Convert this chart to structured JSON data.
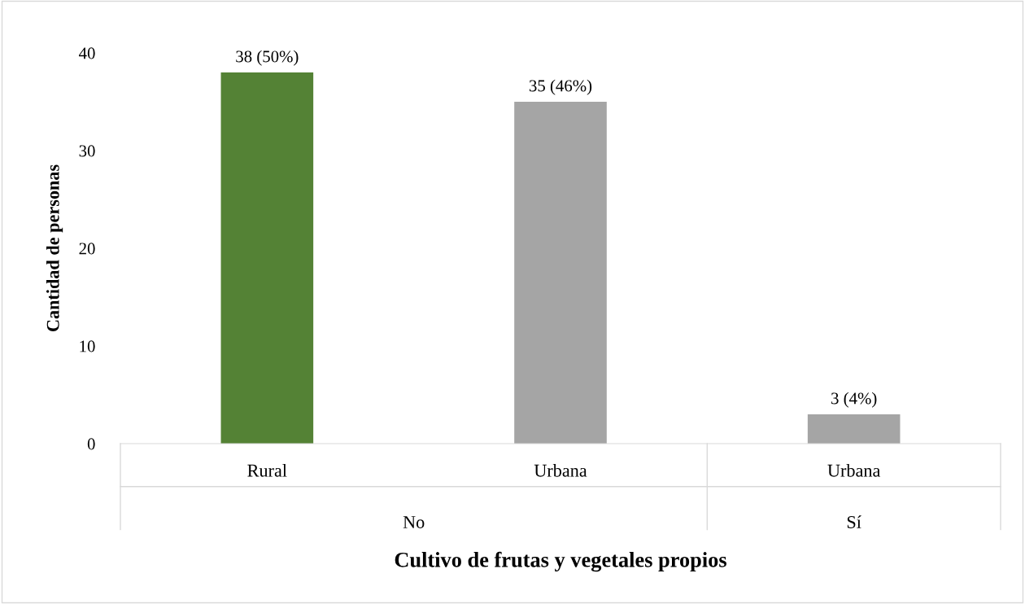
{
  "chart_data": {
    "type": "bar",
    "xlabel": "Cultivo de frutas y vegetales propios",
    "ylabel": "Cantidad de personas",
    "categories": [
      "Rural",
      "Urbana",
      "Urbana"
    ],
    "values": [
      38,
      35,
      3
    ],
    "colors": [
      "#548235",
      "#a5a5a5",
      "#a5a5a5"
    ],
    "value_labels": [
      "38 (50%)",
      "35 (46%)",
      "3 (4%)"
    ],
    "annotations": [
      "No",
      "Sí"
    ],
    "ylim": [
      0,
      40
    ],
    "yticks": [
      0,
      10,
      20,
      30,
      40
    ],
    "grid": false,
    "legend": false
  }
}
